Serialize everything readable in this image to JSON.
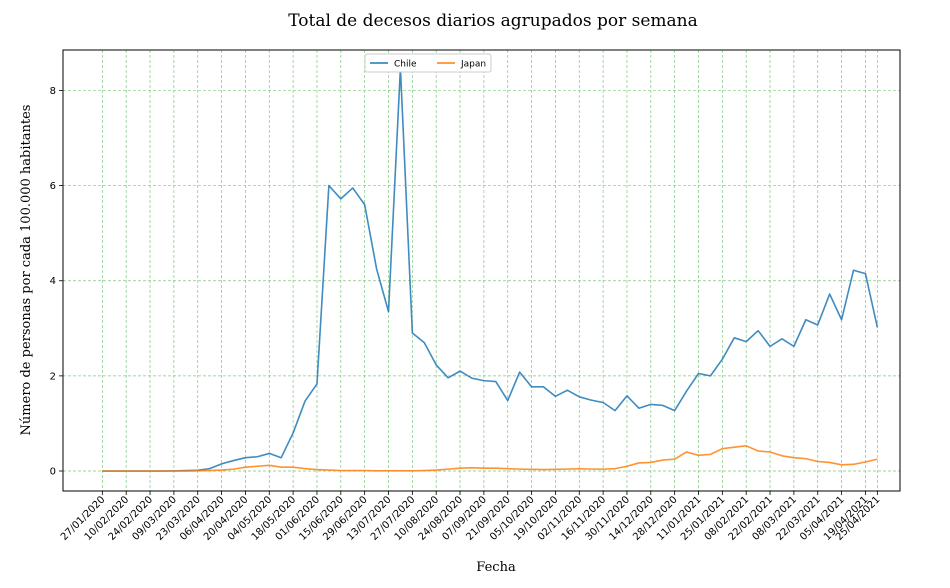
{
  "chart_data": {
    "type": "line",
    "title": "Total de decesos diarios agrupados por semana",
    "xlabel": "Fecha",
    "ylabel": "Número de personas por cada 100.000 habitantes",
    "ylim": [
      -0.42,
      8.85
    ],
    "yticks": [
      0,
      2,
      4,
      6,
      8
    ],
    "grid": true,
    "grid_color": "#7fc97f",
    "legend_position": "top-center",
    "x_tick_labels": [
      "27/01/2020",
      "10/02/2020",
      "24/02/2020",
      "09/03/2020",
      "23/03/2020",
      "06/04/2020",
      "20/04/2020",
      "04/05/2020",
      "18/05/2020",
      "01/06/2020",
      "15/06/2020",
      "29/06/2020",
      "13/07/2020",
      "27/07/2020",
      "10/08/2020",
      "24/08/2020",
      "07/09/2020",
      "21/09/2020",
      "05/10/2020",
      "19/10/2020",
      "02/11/2020",
      "16/11/2020",
      "30/11/2020",
      "14/12/2020",
      "28/12/2020",
      "11/01/2021",
      "25/01/2021",
      "08/02/2021",
      "22/02/2021",
      "08/03/2021",
      "22/03/2021",
      "05/04/2021",
      "19/04/2021",
      "25/04/2021"
    ],
    "x_tick_weeks": [
      0,
      2,
      4,
      6,
      8,
      10,
      12,
      14,
      16,
      18,
      20,
      22,
      24,
      26,
      28,
      30,
      32,
      34,
      36,
      38,
      40,
      42,
      44,
      46,
      48,
      50,
      52,
      54,
      56,
      58,
      60,
      62,
      64,
      65
    ],
    "x_range_weeks": [
      -3.3,
      66.9
    ],
    "series": [
      {
        "name": "Chile",
        "color": "#1f77b4",
        "values": [
          0,
          0,
          0,
          0,
          0,
          0,
          0.003,
          0.01,
          0.015,
          0.05,
          0.15,
          0.22,
          0.28,
          0.3,
          0.37,
          0.28,
          0.8,
          1.47,
          1.83,
          6.0,
          5.72,
          5.95,
          5.6,
          4.25,
          3.35,
          8.47,
          2.9,
          2.7,
          2.23,
          1.96,
          2.1,
          1.95,
          1.9,
          1.88,
          1.48,
          2.08,
          1.77,
          1.77,
          1.57,
          1.7,
          1.56,
          1.49,
          1.44,
          1.27,
          1.58,
          1.32,
          1.4,
          1.38,
          1.27,
          1.68,
          2.05,
          2.0,
          2.35,
          2.8,
          2.72,
          2.95,
          2.62,
          2.78,
          2.62,
          3.18,
          3.07,
          3.72,
          3.18,
          4.22,
          4.15,
          3.02
        ]
      },
      {
        "name": "Japan",
        "color": "#ff7f0e",
        "values": [
          0,
          0,
          0,
          0,
          0,
          0,
          0,
          0,
          0.003,
          0.01,
          0.02,
          0.04,
          0.08,
          0.1,
          0.12,
          0.08,
          0.08,
          0.05,
          0.03,
          0.02,
          0.01,
          0.01,
          0.01,
          0.005,
          0.005,
          0.005,
          0.005,
          0.01,
          0.02,
          0.04,
          0.06,
          0.07,
          0.06,
          0.06,
          0.05,
          0.04,
          0.035,
          0.03,
          0.035,
          0.04,
          0.05,
          0.04,
          0.04,
          0.05,
          0.1,
          0.17,
          0.18,
          0.23,
          0.25,
          0.4,
          0.33,
          0.35,
          0.47,
          0.5,
          0.53,
          0.42,
          0.4,
          0.32,
          0.28,
          0.26,
          0.2,
          0.18,
          0.13,
          0.14,
          0.19,
          0.25
        ]
      }
    ]
  }
}
